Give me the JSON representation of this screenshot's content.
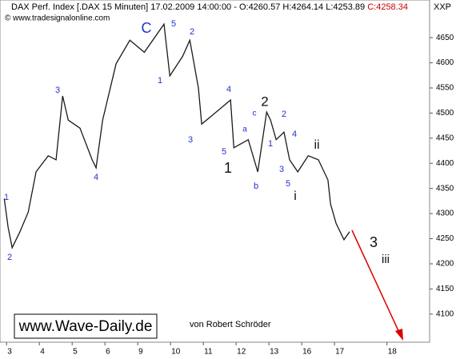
{
  "chart_data": {
    "type": "line",
    "header": "DAX Perf. Index [.DAX 15 Minuten] 17.02.2009 14:00:00 - O:4260.57 H:4264.14 L:4253.89",
    "header_close": "C:4258.34",
    "symbol": "XXP",
    "copyright": "© www.tradesignalonline.com",
    "website": "www.Wave-Daily.de",
    "author": "von Robert Schröder",
    "color": "#1a1a1a",
    "x": [
      -0.07,
      0.05,
      0.17,
      0.41,
      0.66,
      0.9,
      1.27,
      1.51,
      1.71,
      1.88,
      2.24,
      2.61,
      2.73,
      2.93,
      3.34,
      3.76,
      4.2,
      4.8,
      4.98,
      5.37,
      5.59,
      5.85,
      5.95,
      6.39,
      6.83,
      6.93,
      7.37,
      7.66,
      7.93,
      8.05,
      8.22,
      8.46,
      8.63,
      8.88,
      9.2,
      9.51,
      9.8,
      9.88,
      10.05,
      10.29,
      10.46
    ],
    "values": [
      4330,
      4272,
      4232,
      4264,
      4303,
      4383,
      4415,
      4407,
      4534,
      4486,
      4470,
      4407,
      4391,
      4486,
      4598,
      4645,
      4621,
      4677,
      4574,
      4613,
      4645,
      4550,
      4478,
      4502,
      4526,
      4431,
      4447,
      4383,
      4502,
      4486,
      4447,
      4462,
      4407,
      4383,
      4415,
      4407,
      4367,
      4319,
      4280,
      4248,
      4264
    ],
    "xlim": [
      -0.2,
      12.9
    ],
    "xticks": [
      {
        "value": 0,
        "label": "3"
      },
      {
        "value": 1,
        "label": "4"
      },
      {
        "value": 2,
        "label": "5"
      },
      {
        "value": 3,
        "label": "6"
      },
      {
        "value": 4,
        "label": "9"
      },
      {
        "value": 5,
        "label": "10"
      },
      {
        "value": 6,
        "label": "11"
      },
      {
        "value": 7,
        "label": "12"
      },
      {
        "value": 8,
        "label": "13"
      },
      {
        "value": 9,
        "label": "16"
      },
      {
        "value": 10,
        "label": "17"
      },
      {
        "value": 11.6,
        "label": "18"
      }
    ],
    "ylim": [
      4044,
      4725
    ],
    "yticks": [
      4100,
      4150,
      4200,
      4250,
      4300,
      4350,
      4400,
      4450,
      4500,
      4550,
      4600,
      4650
    ],
    "annotations": [
      {
        "text": "1",
        "color": "#2233cc"
      },
      {
        "text": "2",
        "color": "#2233cc"
      },
      {
        "text": "3",
        "color": "#2233cc"
      },
      {
        "text": "4",
        "color": "#2233cc"
      },
      {
        "text": "C",
        "color": "#2233cc"
      },
      {
        "text": "5",
        "color": "#2233cc"
      },
      {
        "text": "1",
        "color": "#2233cc"
      },
      {
        "text": "2",
        "color": "#2233cc"
      },
      {
        "text": "3",
        "color": "#2233cc"
      },
      {
        "text": "4",
        "color": "#2233cc"
      },
      {
        "text": "5",
        "color": "#2233cc"
      },
      {
        "text": "1",
        "color": "#111111"
      },
      {
        "text": "a",
        "color": "#2233cc"
      },
      {
        "text": "c",
        "color": "#2233cc"
      },
      {
        "text": "b",
        "color": "#2233cc"
      },
      {
        "text": "2",
        "color": "#111111"
      },
      {
        "text": "2",
        "color": "#2233cc"
      },
      {
        "text": "1",
        "color": "#2233cc"
      },
      {
        "text": "3",
        "color": "#2233cc"
      },
      {
        "text": "4",
        "color": "#2233cc"
      },
      {
        "text": "5",
        "color": "#2233cc"
      },
      {
        "text": "i",
        "color": "#111111"
      },
      {
        "text": "ii",
        "color": "#111111"
      },
      {
        "text": "3",
        "color": "#111111"
      },
      {
        "text": "iii",
        "color": "#111111"
      }
    ]
  }
}
